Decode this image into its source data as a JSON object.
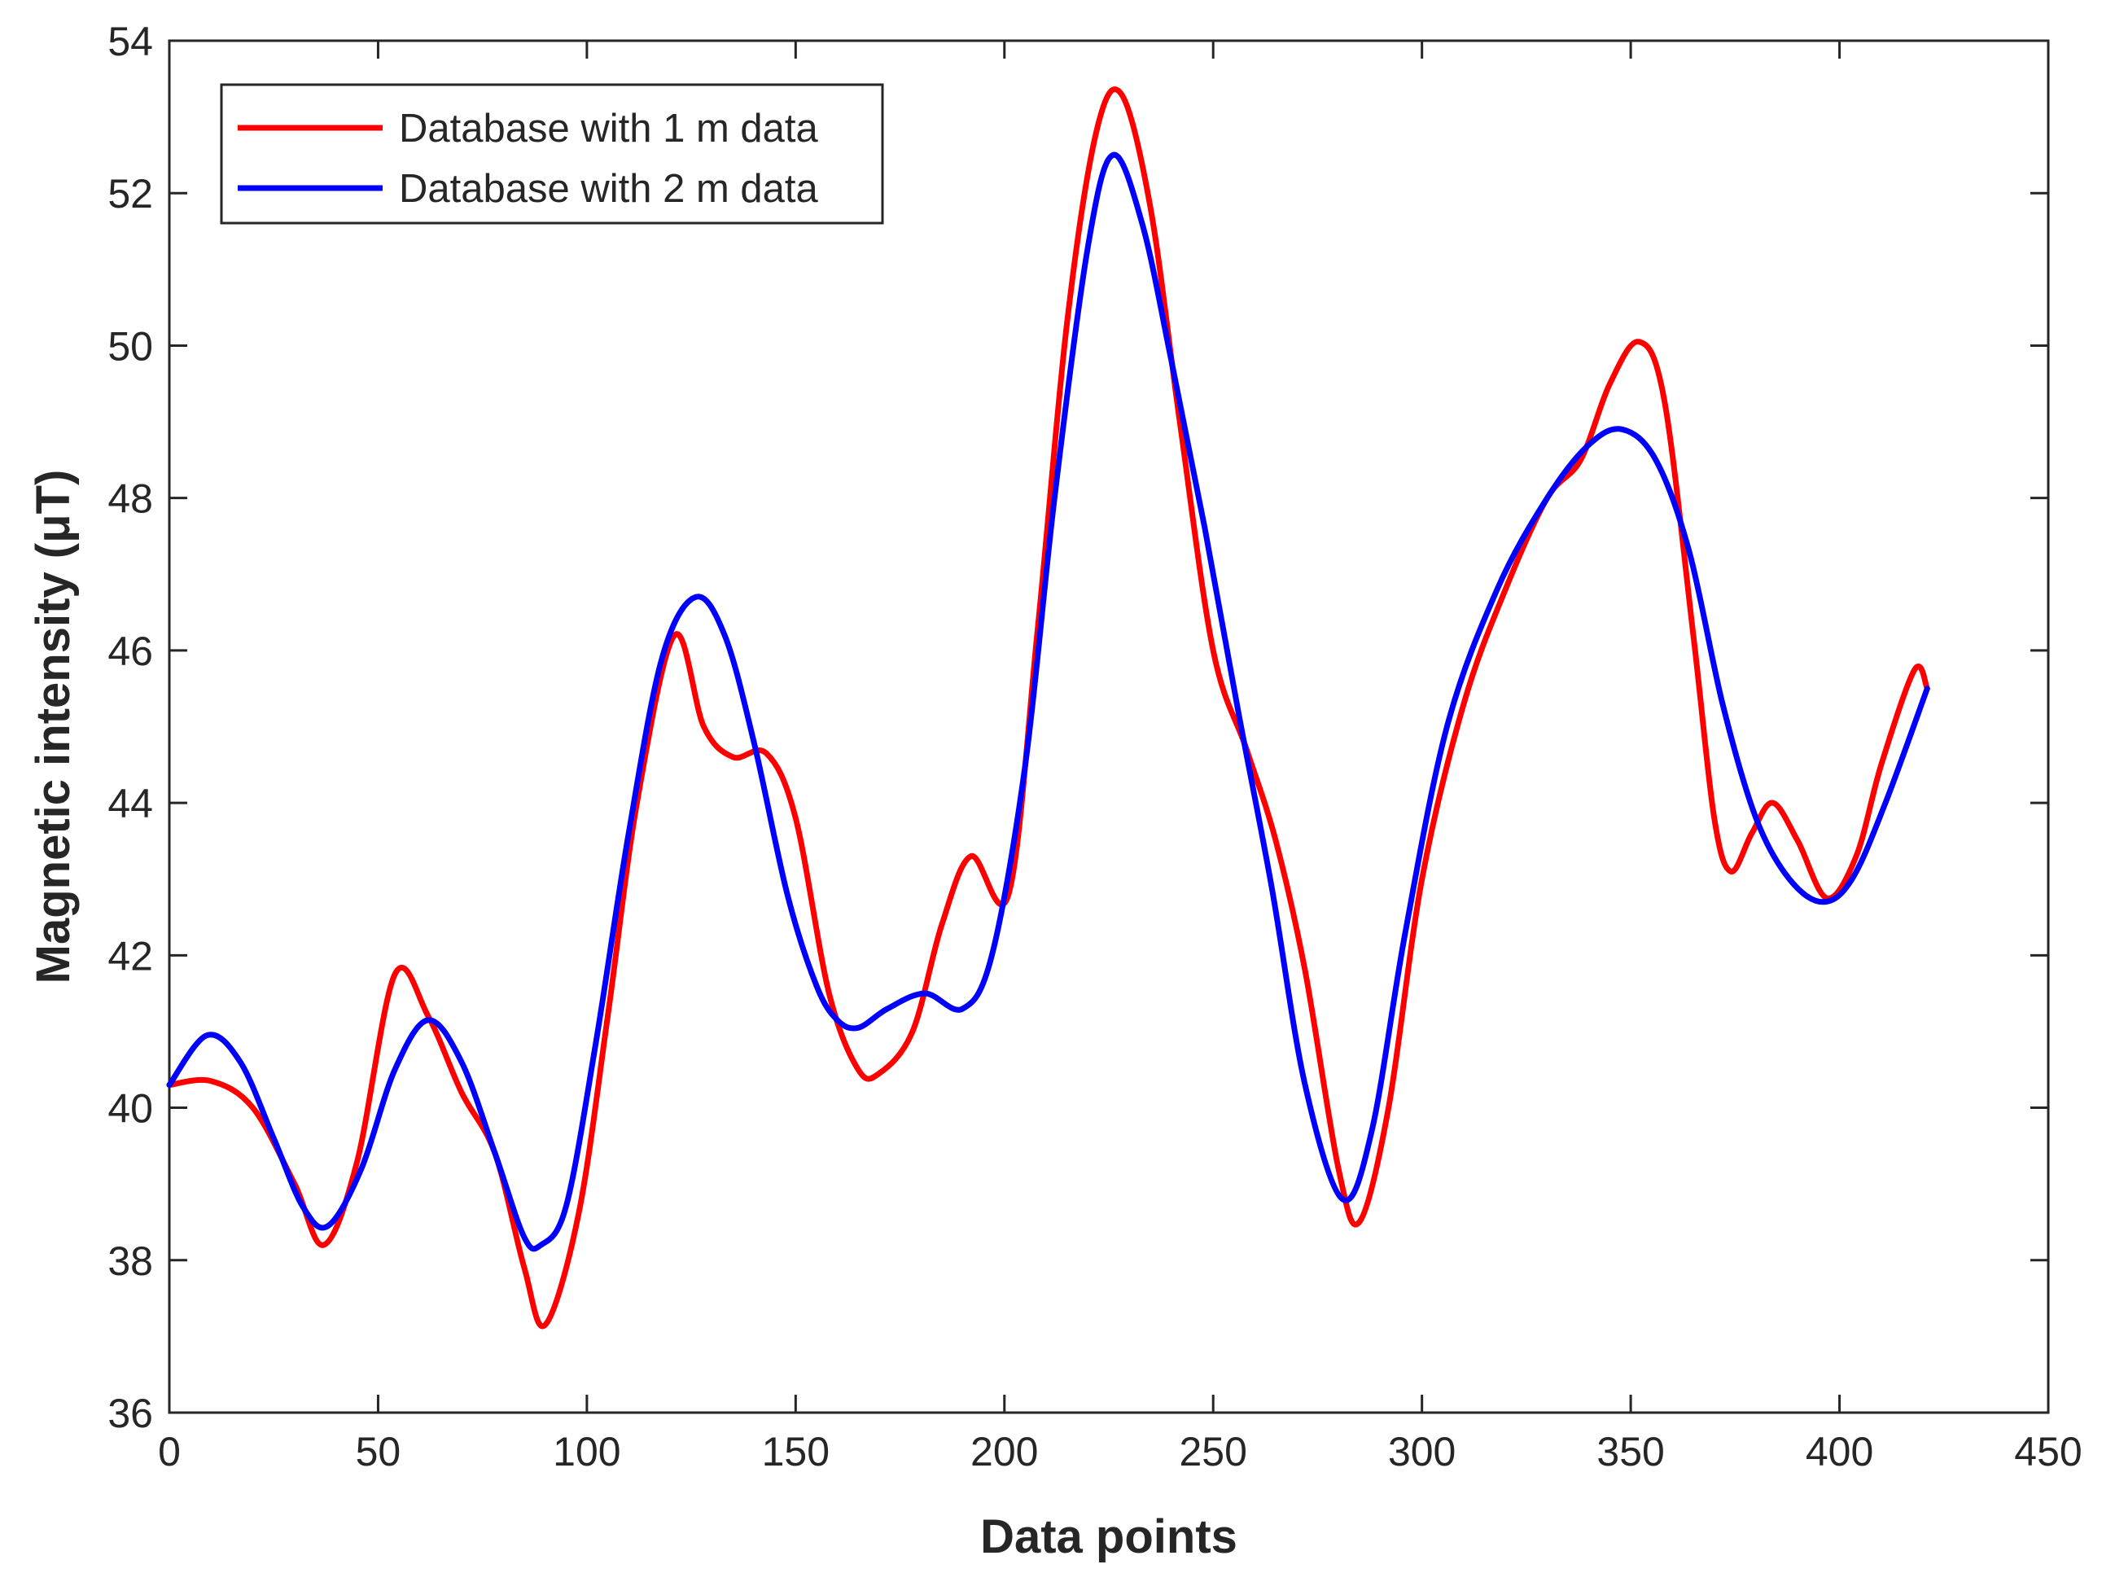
{
  "chart_data": {
    "type": "line",
    "title": "",
    "xlabel": "Data points",
    "ylabel": "Magnetic intensity (μT)",
    "xlim": [
      0,
      450
    ],
    "ylim": [
      36,
      54
    ],
    "xticks": [
      "0",
      "50",
      "100",
      "150",
      "200",
      "250",
      "300",
      "350",
      "400",
      "450"
    ],
    "yticks": [
      "36",
      "38",
      "40",
      "42",
      "44",
      "46",
      "48",
      "50",
      "52",
      "54"
    ],
    "grid": false,
    "legend_position": "top-left",
    "series": [
      {
        "name": "Database with 1 m data",
        "color": "#ff0000",
        "points": [
          [
            0,
            40.3
          ],
          [
            10,
            40.35
          ],
          [
            20,
            40.0
          ],
          [
            30,
            39.0
          ],
          [
            37,
            38.2
          ],
          [
            45,
            39.3
          ],
          [
            54,
            41.75
          ],
          [
            62,
            41.2
          ],
          [
            70,
            40.2
          ],
          [
            78,
            39.4
          ],
          [
            85,
            37.9
          ],
          [
            90,
            37.15
          ],
          [
            98,
            38.6
          ],
          [
            105,
            41.2
          ],
          [
            112,
            44.0
          ],
          [
            121,
            46.2
          ],
          [
            128,
            45.0
          ],
          [
            135,
            44.6
          ],
          [
            143,
            44.65
          ],
          [
            150,
            43.8
          ],
          [
            158,
            41.5
          ],
          [
            165,
            40.5
          ],
          [
            170,
            40.45
          ],
          [
            178,
            41.0
          ],
          [
            185,
            42.4
          ],
          [
            192,
            43.3
          ],
          [
            201,
            42.8
          ],
          [
            208,
            46.3
          ],
          [
            215,
            50.3
          ],
          [
            222,
            52.8
          ],
          [
            228,
            53.3
          ],
          [
            235,
            51.8
          ],
          [
            242,
            49.0
          ],
          [
            250,
            46.0
          ],
          [
            258,
            44.7
          ],
          [
            265,
            43.5
          ],
          [
            272,
            41.8
          ],
          [
            280,
            39.2
          ],
          [
            285,
            38.5
          ],
          [
            292,
            40.0
          ],
          [
            300,
            43.0
          ],
          [
            310,
            45.3
          ],
          [
            320,
            46.8
          ],
          [
            330,
            48.0
          ],
          [
            338,
            48.5
          ],
          [
            345,
            49.5
          ],
          [
            352,
            50.05
          ],
          [
            358,
            49.3
          ],
          [
            365,
            46.2
          ],
          [
            370,
            43.8
          ],
          [
            374,
            43.1
          ],
          [
            379,
            43.6
          ],
          [
            384,
            44.0
          ],
          [
            390,
            43.5
          ],
          [
            397,
            42.75
          ],
          [
            404,
            43.3
          ],
          [
            410,
            44.5
          ],
          [
            418,
            45.75
          ],
          [
            421,
            45.5
          ]
        ]
      },
      {
        "name": "Database with 2 m data",
        "color": "#0000ff",
        "points": [
          [
            0,
            40.3
          ],
          [
            9,
            40.95
          ],
          [
            17,
            40.6
          ],
          [
            25,
            39.6
          ],
          [
            32,
            38.7
          ],
          [
            38,
            38.45
          ],
          [
            46,
            39.2
          ],
          [
            54,
            40.5
          ],
          [
            62,
            41.15
          ],
          [
            70,
            40.6
          ],
          [
            78,
            39.4
          ],
          [
            85,
            38.3
          ],
          [
            89,
            38.2
          ],
          [
            95,
            38.7
          ],
          [
            102,
            40.8
          ],
          [
            110,
            43.6
          ],
          [
            118,
            45.9
          ],
          [
            126,
            46.7
          ],
          [
            133,
            46.2
          ],
          [
            140,
            44.8
          ],
          [
            148,
            42.8
          ],
          [
            155,
            41.6
          ],
          [
            160,
            41.15
          ],
          [
            165,
            41.05
          ],
          [
            172,
            41.3
          ],
          [
            181,
            41.5
          ],
          [
            190,
            41.3
          ],
          [
            197,
            42.0
          ],
          [
            205,
            44.5
          ],
          [
            212,
            48.0
          ],
          [
            220,
            51.3
          ],
          [
            226,
            52.5
          ],
          [
            233,
            51.6
          ],
          [
            240,
            49.8
          ],
          [
            248,
            47.6
          ],
          [
            256,
            45.2
          ],
          [
            264,
            42.9
          ],
          [
            272,
            40.3
          ],
          [
            281,
            38.8
          ],
          [
            288,
            39.7
          ],
          [
            296,
            42.3
          ],
          [
            306,
            45.0
          ],
          [
            318,
            46.8
          ],
          [
            330,
            48.0
          ],
          [
            340,
            48.7
          ],
          [
            348,
            48.9
          ],
          [
            356,
            48.5
          ],
          [
            364,
            47.3
          ],
          [
            372,
            45.3
          ],
          [
            380,
            43.8
          ],
          [
            388,
            43.0
          ],
          [
            396,
            42.7
          ],
          [
            403,
            43.0
          ],
          [
            411,
            44.0
          ],
          [
            421,
            45.5
          ]
        ]
      }
    ]
  }
}
